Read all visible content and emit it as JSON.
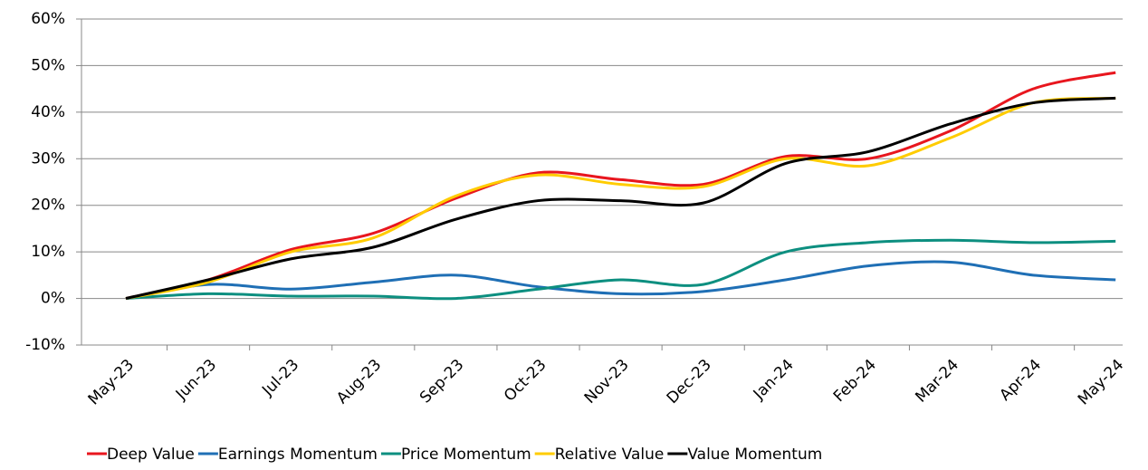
{
  "chart_data": {
    "type": "line",
    "categories": [
      "May-23",
      "Jun-23",
      "Jul-23",
      "Aug-23",
      "Sep-23",
      "Oct-23",
      "Nov-23",
      "Dec-23",
      "Jan-24",
      "Feb-24",
      "Mar-24",
      "Apr-24",
      "May-24"
    ],
    "series": [
      {
        "name": "Deep Value",
        "color": "#e8161e",
        "values": [
          0,
          4,
          10.5,
          14,
          21.5,
          27,
          25.5,
          24.5,
          30.5,
          30,
          36,
          45,
          48.5
        ]
      },
      {
        "name": "Earnings Momentum",
        "color": "#1f6fb5",
        "values": [
          0,
          3,
          2,
          3.5,
          5,
          2.5,
          1,
          1.5,
          4,
          7,
          7.8,
          5,
          4
        ]
      },
      {
        "name": "Price Momentum",
        "color": "#0d8f80",
        "values": [
          0,
          1,
          0.5,
          0.5,
          0,
          2,
          4,
          3,
          10,
          12,
          12.5,
          12,
          12.3
        ]
      },
      {
        "name": "Relative Value",
        "color": "#ffcc00",
        "values": [
          0,
          3.5,
          10,
          13,
          22,
          26.5,
          24.5,
          24,
          30,
          28.5,
          34.5,
          42,
          43
        ]
      },
      {
        "name": "Value Momentum",
        "color": "#000000",
        "values": [
          0,
          4,
          8.5,
          11,
          17,
          21,
          21,
          20.5,
          29,
          31.5,
          37.5,
          42,
          43
        ]
      }
    ],
    "ylim": [
      -10,
      60
    ],
    "yticks": [
      {
        "value": -10,
        "label": "-10%"
      },
      {
        "value": 0,
        "label": "0%"
      },
      {
        "value": 10,
        "label": "10%"
      },
      {
        "value": 20,
        "label": "20%"
      },
      {
        "value": 30,
        "label": "30%"
      },
      {
        "value": 40,
        "label": "40%"
      },
      {
        "value": 50,
        "label": "50%"
      },
      {
        "value": 60,
        "label": "60%"
      }
    ],
    "grid": true
  }
}
